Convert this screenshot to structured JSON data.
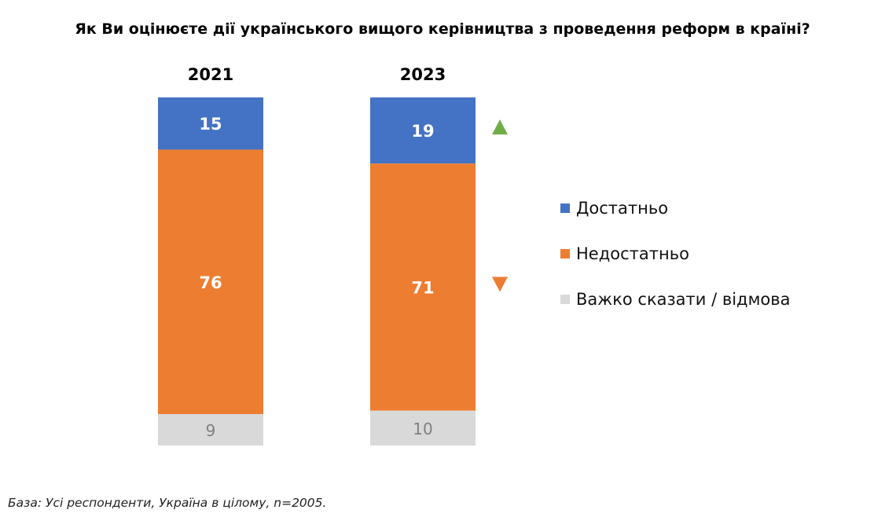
{
  "title": "Як Ви оцінюєте дії українського вищого керівництва з проведення реформ в країні?",
  "footnote": "База: Усі респонденти, Україна в цілому, n=2005.",
  "chart_data": {
    "type": "bar",
    "stacked": true,
    "orientation": "vertical",
    "title": "Як Ви оцінюєте дії українського вищого керівництва з проведення реформ в країні?",
    "categories": [
      "2021",
      "2023"
    ],
    "series": [
      {
        "name": "Достатньо",
        "values": [
          15,
          19
        ],
        "color": "#4472C4",
        "label_color": "#ffffff"
      },
      {
        "name": "Недостатньо",
        "values": [
          76,
          71
        ],
        "color": "#ED7D31",
        "label_color": "#ffffff"
      },
      {
        "name": "Важко сказати / відмова",
        "values": [
          9,
          10
        ],
        "color": "#D9D9D9",
        "label_color": "#7f7f7f"
      }
    ],
    "stack_order": "top-to-bottom",
    "change_markers": {
      "Достатньо": {
        "direction": "up",
        "color": "#70AD47"
      },
      "Недостатньо": {
        "direction": "down",
        "color": "#ED7D31"
      }
    },
    "legend": "right",
    "grid": false,
    "ylim": [
      0,
      100
    ]
  }
}
